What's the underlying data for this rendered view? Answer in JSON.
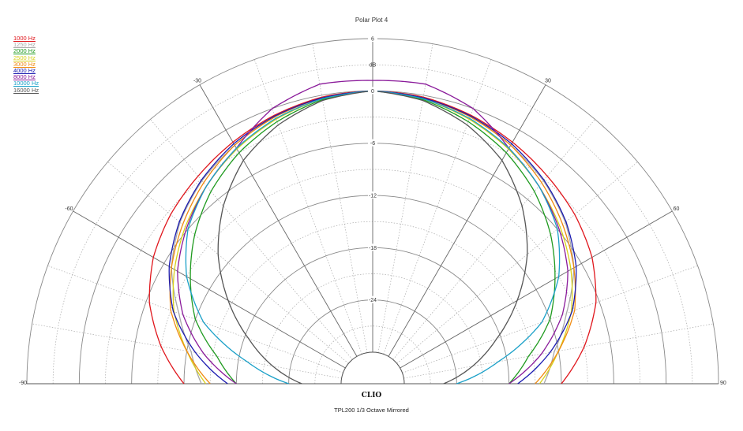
{
  "chart_data": {
    "type": "polar",
    "title": "Polar Plot 4",
    "subtitle": "TPL200  1/3 Octave  Mirrored",
    "brand": "CLIO",
    "unit_label": "dB",
    "radial_ticks": [
      "6",
      "0",
      "-6",
      "-12",
      "-18",
      "-24"
    ],
    "radial_range_db": [
      -30,
      6
    ],
    "angle_range_deg": [
      -90,
      90
    ],
    "angle_labels": [
      "-90",
      "-60",
      "-30",
      "30",
      "60",
      "90"
    ],
    "legend_position": "top-left",
    "series": [
      {
        "name": "1000 Hz",
        "color": "#e0161c",
        "angles": [
          0,
          10,
          20,
          30,
          40,
          50,
          60,
          70,
          80,
          90
        ],
        "db": [
          0,
          -0.2,
          -0.8,
          -1.6,
          -2.5,
          -3.4,
          -4.6,
          -6.4,
          -9.0,
          -12.0
        ]
      },
      {
        "name": "1250 Hz",
        "color": "#a8a8a8",
        "angles": [
          0,
          10,
          20,
          30,
          40,
          50,
          60,
          70,
          80,
          90
        ],
        "db": [
          0,
          -0.3,
          -1.0,
          -2.0,
          -3.2,
          -4.8,
          -7.0,
          -10.0,
          -12.5,
          -14.0
        ]
      },
      {
        "name": "2000 Hz",
        "color": "#1e9a1e",
        "angles": [
          0,
          10,
          20,
          30,
          40,
          50,
          60,
          70,
          80,
          90
        ],
        "db": [
          0,
          -0.5,
          -1.6,
          -3.0,
          -4.8,
          -7.0,
          -9.5,
          -12.0,
          -15.5,
          -18.0
        ]
      },
      {
        "name": "2500 Hz",
        "color": "#d8d01a",
        "angles": [
          0,
          10,
          20,
          30,
          40,
          50,
          60,
          70,
          80,
          90
        ],
        "db": [
          0,
          -0.4,
          -1.3,
          -2.5,
          -4.0,
          -5.6,
          -7.4,
          -9.4,
          -12.0,
          -14.5
        ]
      },
      {
        "name": "3000 Hz",
        "color": "#f08a10",
        "angles": [
          0,
          10,
          20,
          30,
          40,
          50,
          60,
          70,
          80,
          90
        ],
        "db": [
          0,
          -0.3,
          -1.0,
          -2.0,
          -3.5,
          -5.2,
          -7.0,
          -9.0,
          -12.0,
          -15.0
        ]
      },
      {
        "name": "4000 Hz",
        "color": "#1a1ab0",
        "angles": [
          0,
          10,
          20,
          30,
          40,
          50,
          60,
          70,
          80,
          90
        ],
        "db": [
          0,
          -0.3,
          -0.9,
          -1.8,
          -3.1,
          -4.7,
          -6.7,
          -9.3,
          -13.0,
          -17.0
        ]
      },
      {
        "name": "8000 Hz",
        "color": "#8a1a9a",
        "angles": [
          0,
          10,
          20,
          30,
          40,
          50,
          60,
          70,
          80,
          90
        ],
        "db": [
          1.2,
          1.3,
          0.0,
          -2.4,
          -4.0,
          -5.8,
          -7.8,
          -10.5,
          -14.0,
          -18.0
        ]
      },
      {
        "name": "10000 Hz",
        "color": "#1aa0c8",
        "angles": [
          0,
          10,
          20,
          30,
          40,
          50,
          60,
          70,
          80,
          90
        ],
        "db": [
          0,
          -0.4,
          -1.2,
          -2.4,
          -4.0,
          -6.0,
          -9.0,
          -13.0,
          -19.0,
          -24.0
        ]
      },
      {
        "name": "16000 Hz",
        "color": "#555555",
        "angles": [
          0,
          10,
          20,
          30,
          40,
          50,
          60,
          70,
          80,
          90
        ],
        "db": [
          0,
          -0.6,
          -2.0,
          -4.0,
          -7.0,
          -10.5,
          -14.5,
          -18.5,
          -22.0,
          -25.5
        ]
      }
    ]
  }
}
